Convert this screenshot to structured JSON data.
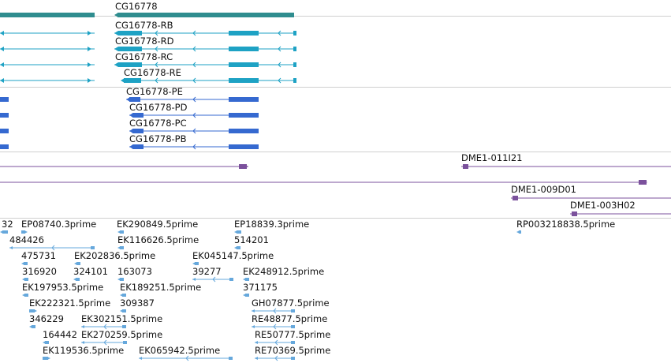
{
  "colors": {
    "gene": "#2f8d8f",
    "transcript_cds": "#1ea2c4",
    "protein": "#3569d0",
    "clone": "#7b519c",
    "est": "#66a8dc",
    "separator": "#cfcfcf"
  },
  "gene_track": {
    "gene_name": "CG16778",
    "transcripts": [
      "CG16778-RB",
      "CG16778-RD",
      "CG16778-RC",
      "CG16778-RE"
    ]
  },
  "protein_track": {
    "proteins": [
      "CG16778-PE",
      "CG16778-PD",
      "CG16778-PC",
      "CG16778-PB"
    ]
  },
  "clone_track": {
    "clones": [
      "DME1-011I21",
      "DME1-009D01",
      "DME1-003H02"
    ]
  },
  "est_track": {
    "ests": [
      "32",
      "EP08740.3prime",
      "EK290849.5prime",
      "EP18839.3prime",
      "484426",
      "EK116626.5prime",
      "514201",
      "475731",
      "EK202836.5prime",
      "EK045147.5prime",
      "316920",
      "324101",
      "163073",
      "39277",
      "EK248912.5prime",
      "EK197953.5prime",
      "EK189251.5prime",
      "371175",
      "EK222321.5prime",
      "309387",
      "GH07877.5prime",
      "346229",
      "EK302151.5prime",
      "RE48877.5prime",
      "164442",
      "EK270259.5prime",
      "RE50777.5prime",
      "EK119536.5prime",
      "EK065942.5prime",
      "RE70369.5prime",
      "RP003218838.5prime"
    ]
  }
}
